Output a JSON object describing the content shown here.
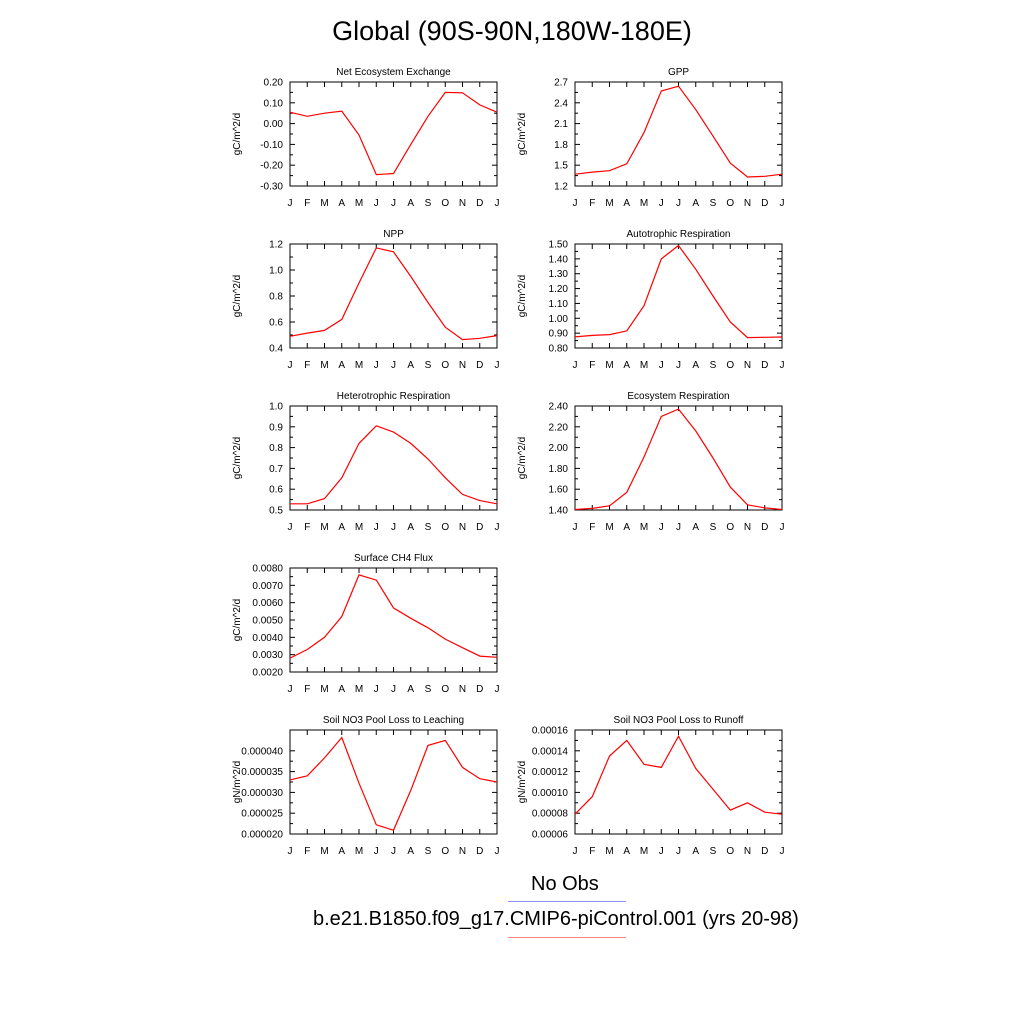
{
  "title": "Global (90S-90N,180W-180E)",
  "legend": {
    "obs_label": "No Obs",
    "obs_color": "#8f8fff",
    "model_label": "b.e21.B1850.f09_g17.CMIP6-piControl.001 (yrs 20-98)",
    "model_color": "#ff8080"
  },
  "month_labels": [
    "J",
    "F",
    "M",
    "A",
    "M",
    "J",
    "J",
    "A",
    "S",
    "O",
    "N",
    "D",
    "J"
  ],
  "line_color": "#ff0000",
  "chart_data": [
    {
      "type": "line",
      "title": "Net Ecosystem Exchange",
      "ylabel": "gC/m^2/d",
      "ylim": [
        -0.3,
        0.2
      ],
      "yticks": [
        "0.20",
        "0.10",
        "0.00",
        "-0.10",
        "-0.20",
        "-0.30"
      ],
      "ytick_values": [
        0.2,
        0.1,
        0.0,
        -0.1,
        -0.2,
        -0.3
      ],
      "values": [
        0.055,
        0.035,
        0.05,
        0.06,
        -0.055,
        -0.245,
        -0.24,
        -0.1,
        0.035,
        0.15,
        0.148,
        0.09,
        0.055
      ]
    },
    {
      "type": "line",
      "title": "GPP",
      "ylabel": "gC/m^2/d",
      "ylim": [
        1.2,
        2.7
      ],
      "yticks": [
        "2.7",
        "2.4",
        "2.1",
        "1.8",
        "1.5",
        "1.2"
      ],
      "ytick_values": [
        2.7,
        2.4,
        2.1,
        1.8,
        1.5,
        1.2
      ],
      "values": [
        1.37,
        1.4,
        1.42,
        1.52,
        1.97,
        2.57,
        2.64,
        2.3,
        1.92,
        1.53,
        1.33,
        1.34,
        1.37
      ]
    },
    {
      "type": "line",
      "title": "NPP",
      "ylabel": "gC/m^2/d",
      "ylim": [
        0.4,
        1.2
      ],
      "yticks": [
        "1.2",
        "1.0",
        "0.8",
        "0.6",
        "0.4"
      ],
      "ytick_values": [
        1.2,
        1.0,
        0.8,
        0.6,
        0.4
      ],
      "values": [
        0.49,
        0.515,
        0.535,
        0.62,
        0.9,
        1.17,
        1.14,
        0.95,
        0.75,
        0.56,
        0.465,
        0.475,
        0.495
      ]
    },
    {
      "type": "line",
      "title": "Autotrophic Respiration",
      "ylabel": "gC/m^2/d",
      "ylim": [
        0.8,
        1.5
      ],
      "yticks": [
        "1.50",
        "1.40",
        "1.30",
        "1.20",
        "1.10",
        "1.00",
        "0.90",
        "0.80"
      ],
      "ytick_values": [
        1.5,
        1.4,
        1.3,
        1.2,
        1.1,
        1.0,
        0.9,
        0.8
      ],
      "values": [
        0.875,
        0.885,
        0.89,
        0.915,
        1.085,
        1.4,
        1.49,
        1.33,
        1.15,
        0.975,
        0.87,
        0.872,
        0.874
      ]
    },
    {
      "type": "line",
      "title": "Heterotrophic Respiration",
      "ylabel": "gC/m^2/d",
      "ylim": [
        0.5,
        1.0
      ],
      "yticks": [
        "1.0",
        "0.9",
        "0.8",
        "0.7",
        "0.6",
        "0.5"
      ],
      "ytick_values": [
        1.0,
        0.9,
        0.8,
        0.7,
        0.6,
        0.5
      ],
      "values": [
        0.53,
        0.53,
        0.555,
        0.655,
        0.82,
        0.905,
        0.875,
        0.82,
        0.745,
        0.655,
        0.575,
        0.545,
        0.53
      ]
    },
    {
      "type": "line",
      "title": "Ecosystem Respiration",
      "ylabel": "gC/m^2/d",
      "ylim": [
        1.4,
        2.4
      ],
      "yticks": [
        "2.40",
        "2.20",
        "2.00",
        "1.80",
        "1.60",
        "1.40"
      ],
      "ytick_values": [
        2.4,
        2.2,
        2.0,
        1.8,
        1.6,
        1.4
      ],
      "values": [
        1.405,
        1.415,
        1.44,
        1.57,
        1.91,
        2.3,
        2.37,
        2.16,
        1.9,
        1.62,
        1.45,
        1.42,
        1.405
      ]
    },
    {
      "type": "line",
      "title": "Surface CH4 Flux",
      "ylabel": "gC/m^2/d",
      "ylim": [
        0.002,
        0.008
      ],
      "yticks": [
        "0.0080",
        "0.0070",
        "0.0060",
        "0.0050",
        "0.0040",
        "0.0030",
        "0.0020"
      ],
      "ytick_values": [
        0.008,
        0.007,
        0.006,
        0.005,
        0.004,
        0.003,
        0.002
      ],
      "values": [
        0.0028,
        0.0033,
        0.004,
        0.0052,
        0.0076,
        0.0073,
        0.0057,
        0.0051,
        0.00455,
        0.0039,
        0.0034,
        0.00292,
        0.00285
      ]
    },
    {
      "type": "line",
      "title": "Soil NO3 Pool Loss to Leaching",
      "ylabel": "gN/m^2/d",
      "ylim": [
        2e-05,
        4.5e-05
      ],
      "yticks": [
        "0.000040",
        "0.000035",
        "0.000030",
        "0.000025",
        "0.000020"
      ],
      "ytick_values": [
        4e-05,
        3.5e-05,
        3e-05,
        2.5e-05,
        2e-05
      ],
      "values": [
        3.3e-05,
        3.4e-05,
        3.83e-05,
        4.32e-05,
        3.22e-05,
        2.22e-05,
        2.09e-05,
        3.05e-05,
        4.13e-05,
        4.25e-05,
        3.6e-05,
        3.33e-05,
        3.25e-05
      ]
    },
    {
      "type": "line",
      "title": "Soil NO3 Pool Loss to Runoff",
      "ylabel": "gN/m^2/d",
      "ylim": [
        6e-05,
        0.00016
      ],
      "yticks": [
        "0.00016",
        "0.00014",
        "0.00012",
        "0.00010",
        "0.00008",
        "0.00006"
      ],
      "ytick_values": [
        0.00016,
        0.00014,
        0.00012,
        0.0001,
        8e-05,
        6e-05
      ],
      "values": [
        7.9e-05,
        9.6e-05,
        0.000135,
        0.00015,
        0.000127,
        0.000124,
        0.000154,
        0.000123,
        0.000103,
        8.3e-05,
        9e-05,
        8.1e-05,
        7.9e-05
      ]
    }
  ]
}
